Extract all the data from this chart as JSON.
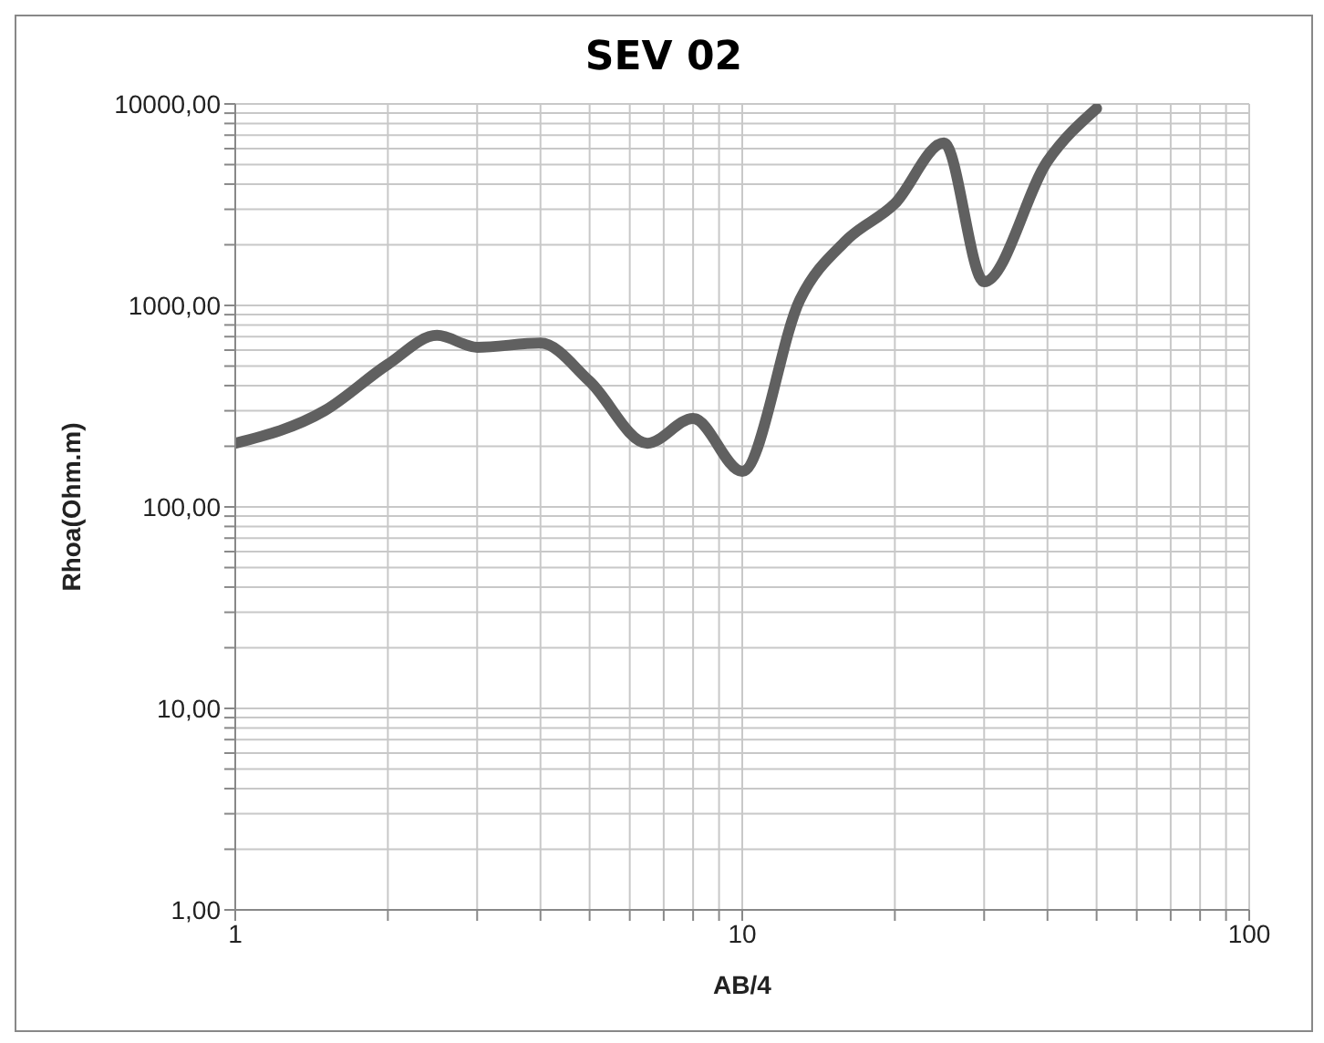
{
  "chart_data": {
    "type": "line",
    "title": "SEV 02",
    "xlabel": "AB/4",
    "ylabel": "Rhoa(Ohm.m)",
    "x": [
      1,
      1.5,
      2,
      2.5,
      3,
      4,
      5,
      6.5,
      8,
      10,
      13,
      16,
      20,
      25,
      30,
      40,
      50
    ],
    "series": [
      {
        "color": "#606060",
        "values": [
          207,
          300,
          510,
          710,
          620,
          650,
          420,
          207,
          275,
          150,
          1070,
          2090,
          3200,
          6400,
          1310,
          5200,
          9500
        ]
      }
    ],
    "log": "xy",
    "xlim": [
      1,
      100
    ],
    "ylim": [
      1,
      10000
    ],
    "xticks": [
      1,
      {
        "value": 2,
        "label": null
      },
      {
        "value": 3,
        "label": null
      },
      {
        "value": 4,
        "label": null
      },
      {
        "value": 5,
        "label": null
      },
      {
        "value": 6,
        "label": null
      },
      {
        "value": 7,
        "label": null
      },
      {
        "value": 8,
        "label": null
      },
      {
        "value": 9,
        "label": null
      },
      10,
      {
        "value": 20,
        "label": null
      },
      {
        "value": 30,
        "label": null
      },
      {
        "value": 40,
        "label": null
      },
      {
        "value": 50,
        "label": null
      },
      {
        "value": 60,
        "label": null
      },
      {
        "value": 70,
        "label": null
      },
      {
        "value": 80,
        "label": null
      },
      {
        "value": 90,
        "label": null
      },
      100
    ],
    "yticks": [
      {
        "value": 1,
        "label": "1,00"
      },
      {
        "value": 2,
        "label": null
      },
      {
        "value": 3,
        "label": null
      },
      {
        "value": 4,
        "label": null
      },
      {
        "value": 5,
        "label": null
      },
      {
        "value": 6,
        "label": null
      },
      {
        "value": 7,
        "label": null
      },
      {
        "value": 8,
        "label": null
      },
      {
        "value": 9,
        "label": null
      },
      {
        "value": 10,
        "label": "10,00"
      },
      {
        "value": 20,
        "label": null
      },
      {
        "value": 30,
        "label": null
      },
      {
        "value": 40,
        "label": null
      },
      {
        "value": 50,
        "label": null
      },
      {
        "value": 60,
        "label": null
      },
      {
        "value": 70,
        "label": null
      },
      {
        "value": 80,
        "label": null
      },
      {
        "value": 90,
        "label": null
      },
      {
        "value": 100,
        "label": "100,00"
      },
      {
        "value": 200,
        "label": null
      },
      {
        "value": 300,
        "label": null
      },
      {
        "value": 400,
        "label": null
      },
      {
        "value": 500,
        "label": null
      },
      {
        "value": 600,
        "label": null
      },
      {
        "value": 700,
        "label": null
      },
      {
        "value": 800,
        "label": null
      },
      {
        "value": 900,
        "label": null
      },
      {
        "value": 1000,
        "label": "1000,00"
      },
      {
        "value": 2000,
        "label": null
      },
      {
        "value": 3000,
        "label": null
      },
      {
        "value": 4000,
        "label": null
      },
      {
        "value": 5000,
        "label": null
      },
      {
        "value": 6000,
        "label": null
      },
      {
        "value": 7000,
        "label": null
      },
      {
        "value": 8000,
        "label": null
      },
      {
        "value": 9000,
        "label": null
      },
      {
        "value": 10000,
        "label": "10000,00"
      }
    ],
    "grid": true,
    "legend": false,
    "marker": "none",
    "line_style": "solid"
  }
}
